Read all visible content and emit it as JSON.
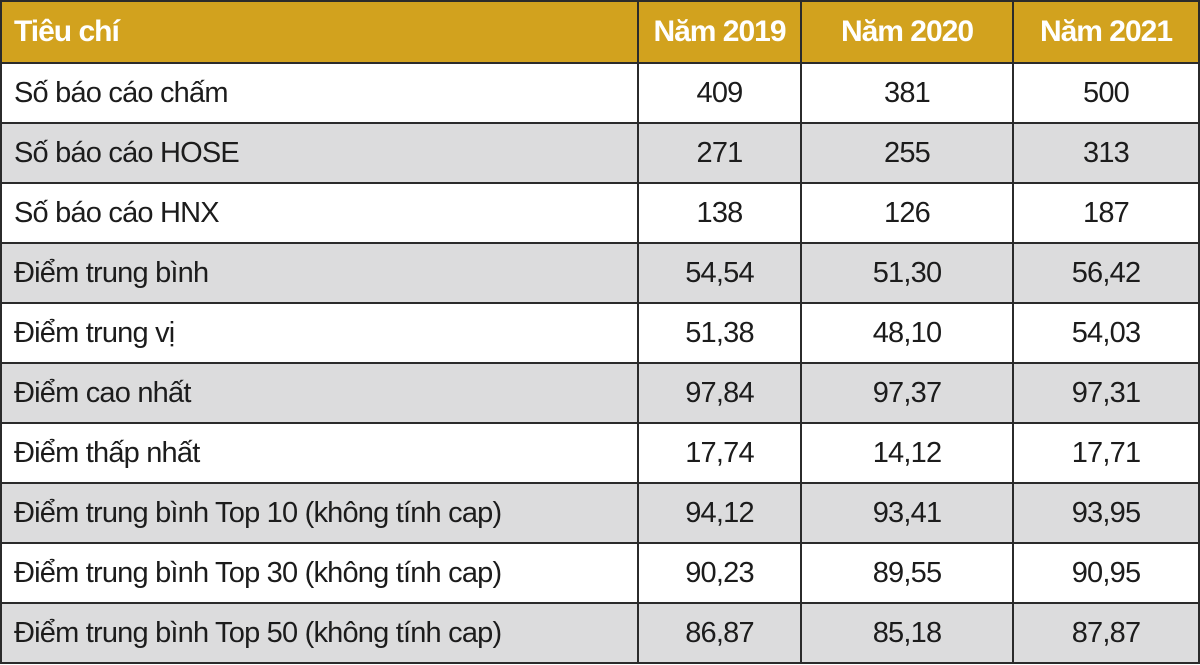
{
  "table": {
    "header_color": "#d2a21e",
    "shade_color": "#dcdcdd",
    "columns": [
      "Tiêu chí",
      "Năm 2019",
      "Năm 2020",
      "Năm 2021"
    ],
    "rows": [
      {
        "label": "Số báo cáo chấm",
        "values": [
          "409",
          "381",
          "500"
        ]
      },
      {
        "label": "Số báo cáo HOSE",
        "values": [
          "271",
          "255",
          "313"
        ]
      },
      {
        "label": "Số báo cáo HNX",
        "values": [
          "138",
          "126",
          "187"
        ]
      },
      {
        "label": "Điểm trung bình",
        "values": [
          "54,54",
          "51,30",
          "56,42"
        ]
      },
      {
        "label": "Điểm trung vị",
        "values": [
          "51,38",
          "48,10",
          "54,03"
        ]
      },
      {
        "label": "Điểm cao nhất",
        "values": [
          "97,84",
          "97,37",
          "97,31"
        ]
      },
      {
        "label": "Điểm thấp nhất",
        "values": [
          "17,74",
          "14,12",
          "17,71"
        ]
      },
      {
        "label": "Điểm trung bình Top 10 (không tính cap)",
        "values": [
          "94,12",
          "93,41",
          "93,95"
        ]
      },
      {
        "label": "Điểm trung bình Top 30 (không tính cap)",
        "values": [
          "90,23",
          "89,55",
          "90,95"
        ]
      },
      {
        "label": "Điểm trung bình Top 50 (không tính cap)",
        "values": [
          "86,87",
          "85,18",
          "87,87"
        ]
      }
    ]
  }
}
